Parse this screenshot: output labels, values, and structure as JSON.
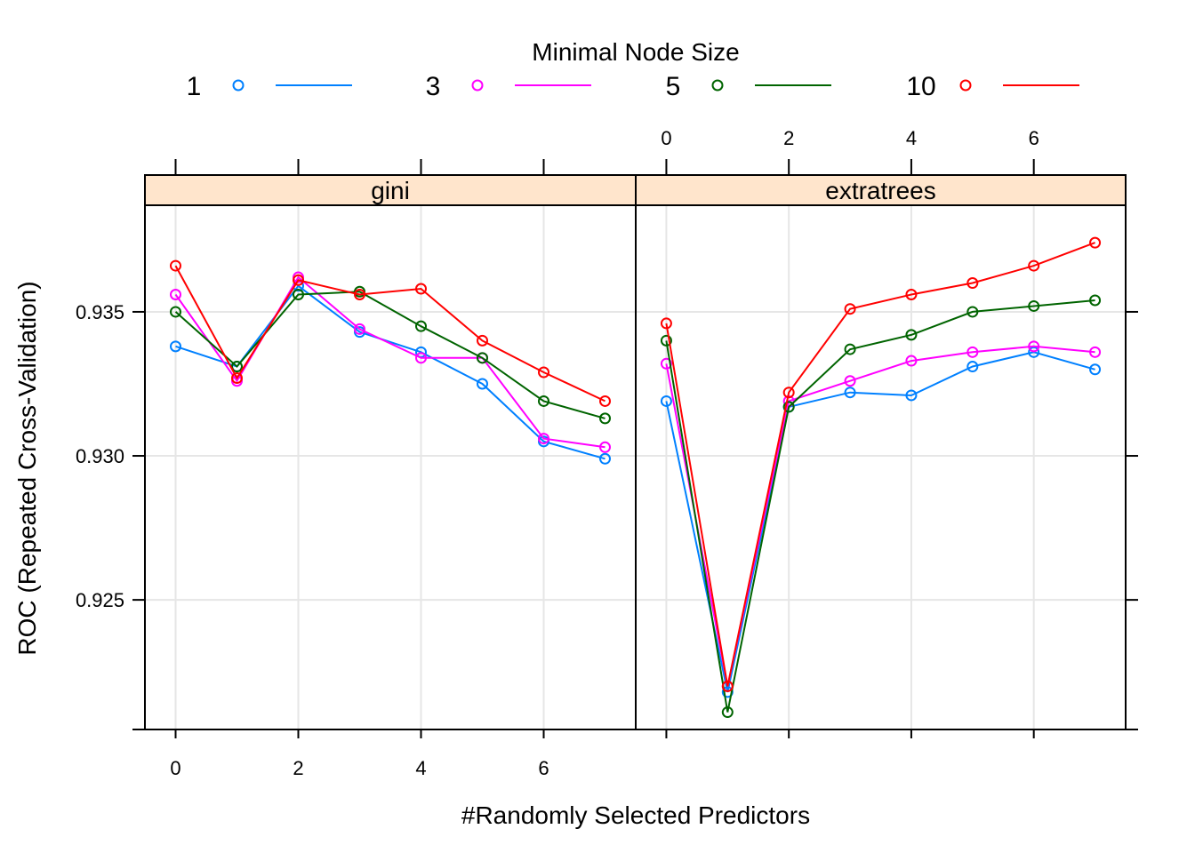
{
  "chart_data": {
    "type": "line",
    "xlabel": "#Randomly Selected Predictors",
    "ylabel": "ROC (Repeated Cross-Validation)",
    "legend": {
      "title": "Minimal Node Size",
      "placement": "top",
      "entries": [
        "1",
        "3",
        "5",
        "10"
      ]
    },
    "colors": {
      "1": "#0080ff",
      "3": "#ff00ff",
      "5": "#006400",
      "10": "#ff0000"
    },
    "xlim": [
      -0.5,
      7.5
    ],
    "ylim": [
      0.9205,
      0.9387
    ],
    "x_ticks": [
      "0",
      "2",
      "4",
      "6"
    ],
    "y_ticks": [
      "0.925",
      "0.930",
      "0.935"
    ],
    "grid": true,
    "x": [
      0,
      1,
      2,
      3,
      4,
      5,
      6,
      7
    ],
    "panels": [
      {
        "name": "gini",
        "series": [
          {
            "name": "1",
            "values": [
              0.9338,
              0.9331,
              0.9359,
              0.9343,
              0.9336,
              0.9325,
              0.9305,
              0.9299
            ]
          },
          {
            "name": "3",
            "values": [
              0.9356,
              0.9326,
              0.9362,
              0.9344,
              0.9334,
              0.9334,
              0.9306,
              0.9303
            ]
          },
          {
            "name": "5",
            "values": [
              0.935,
              0.9331,
              0.9356,
              0.9357,
              0.9345,
              0.9334,
              0.9319,
              0.9313
            ]
          },
          {
            "name": "10",
            "values": [
              0.9366,
              0.9327,
              0.9361,
              0.9356,
              0.9358,
              0.934,
              0.9329,
              0.9319
            ]
          }
        ]
      },
      {
        "name": "extratrees",
        "series": [
          {
            "name": "1",
            "values": [
              0.9319,
              0.9218,
              0.9317,
              0.9322,
              0.9321,
              0.9331,
              0.9336,
              0.933
            ]
          },
          {
            "name": "3",
            "values": [
              0.9332,
              0.922,
              0.9319,
              0.9326,
              0.9333,
              0.9336,
              0.9338,
              0.9336
            ]
          },
          {
            "name": "5",
            "values": [
              0.934,
              0.9211,
              0.9317,
              0.9337,
              0.9342,
              0.935,
              0.9352,
              0.9354
            ]
          },
          {
            "name": "10",
            "values": [
              0.9346,
              0.922,
              0.9322,
              0.9351,
              0.9356,
              0.936,
              0.9366,
              0.9374
            ]
          }
        ]
      }
    ]
  }
}
